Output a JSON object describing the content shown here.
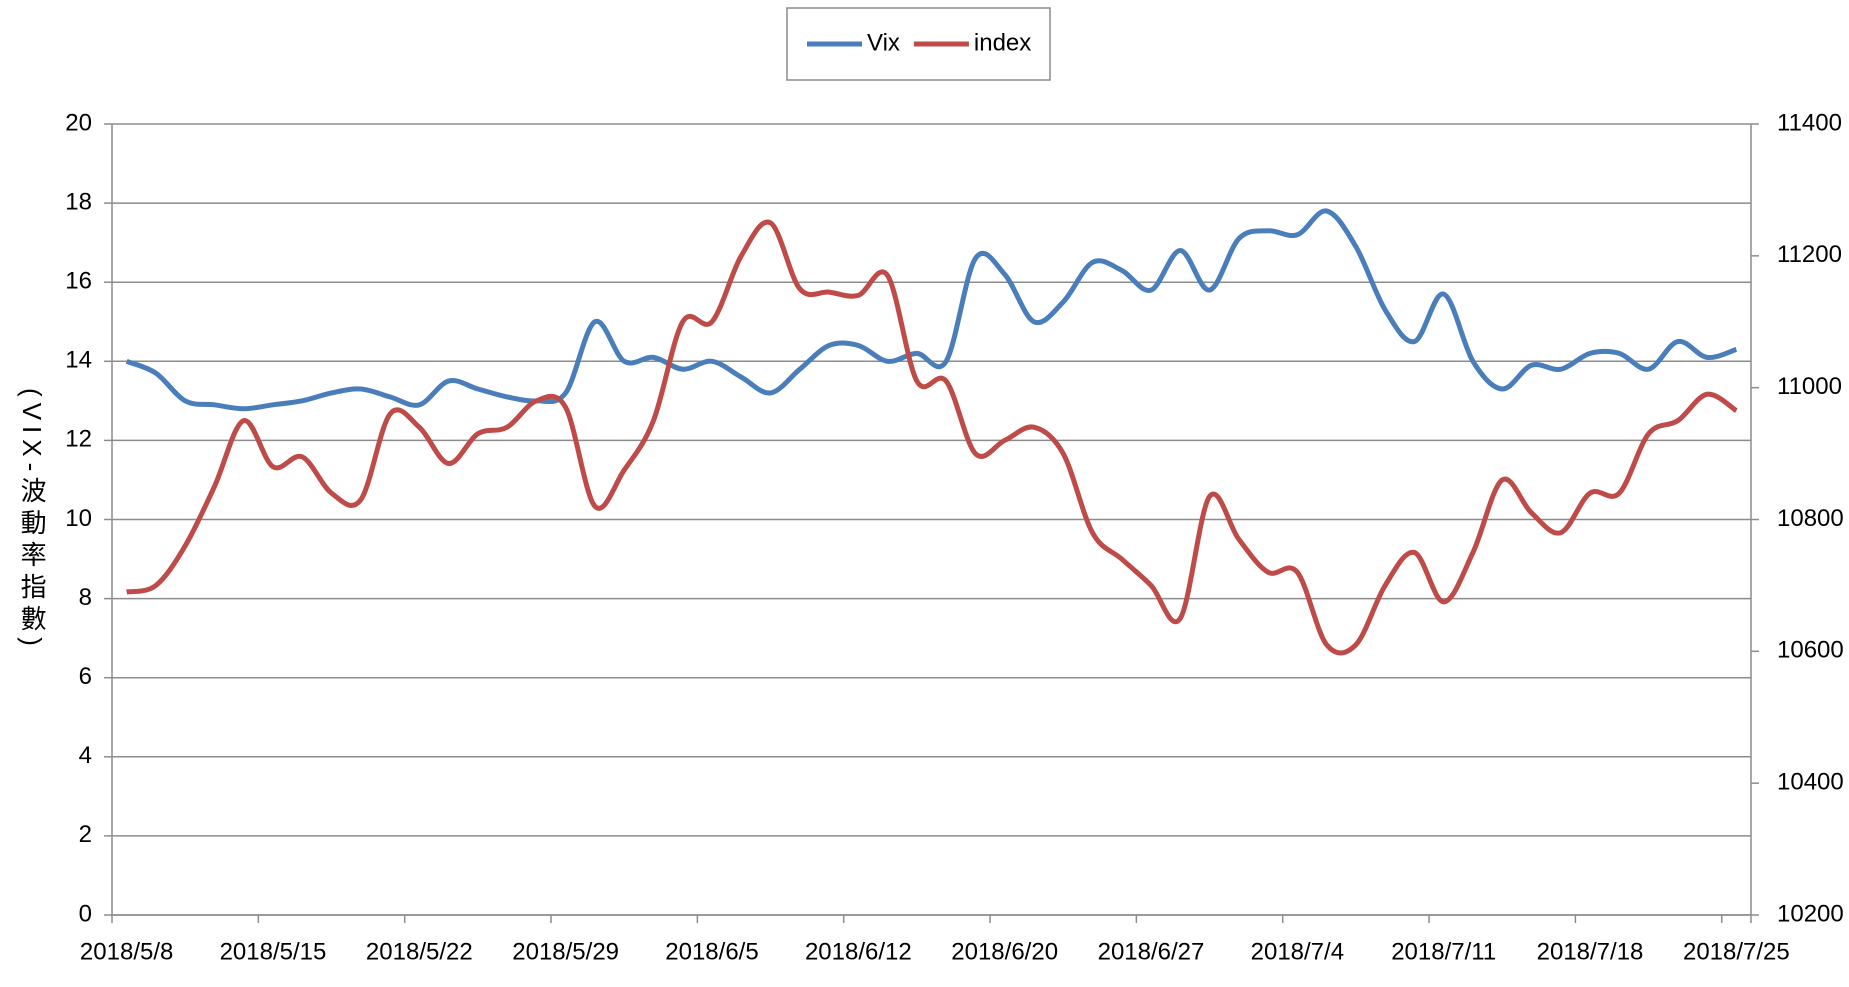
{
  "chart_data": {
    "type": "line",
    "y_label": "(VIX-波動率指數)",
    "categories": [
      "2018/5/8",
      null,
      null,
      null,
      null,
      "2018/5/15",
      null,
      null,
      null,
      null,
      "2018/5/22",
      null,
      null,
      null,
      null,
      "2018/5/29",
      null,
      null,
      null,
      null,
      "2018/6/5",
      null,
      null,
      null,
      null,
      "2018/6/12",
      null,
      null,
      null,
      null,
      "2018/6/20",
      null,
      null,
      null,
      null,
      "2018/6/27",
      null,
      null,
      null,
      null,
      "2018/7/4",
      null,
      null,
      null,
      null,
      "2018/7/11",
      null,
      null,
      null,
      null,
      "2018/7/18",
      null,
      null,
      null,
      null,
      "2018/7/25"
    ],
    "series": [
      {
        "name": "Vix",
        "color": "#4a7ebb",
        "axis": "y",
        "values": [
          14.0,
          13.7,
          13.0,
          12.9,
          12.8,
          12.9,
          13.0,
          13.2,
          13.3,
          13.1,
          12.9,
          13.5,
          13.3,
          13.1,
          13.0,
          13.2,
          15.0,
          14.0,
          14.1,
          13.8,
          14.0,
          13.6,
          13.2,
          13.8,
          14.4,
          14.4,
          14.0,
          14.2,
          14.0,
          16.6,
          16.2,
          15.0,
          15.5,
          16.5,
          16.3,
          15.8,
          16.8,
          15.8,
          17.1,
          17.3,
          17.2,
          17.8,
          16.9,
          15.3,
          14.5,
          15.7,
          14.0,
          13.3,
          13.9,
          13.8,
          14.2,
          14.2,
          13.8,
          14.5,
          14.1,
          14.3
        ]
      },
      {
        "name": "index",
        "color": "#be4b48",
        "axis": "y2",
        "values": [
          10690,
          10700,
          10760,
          10850,
          10950,
          10880,
          10895,
          10840,
          10830,
          10960,
          10940,
          10885,
          10930,
          10940,
          10980,
          10970,
          10820,
          10875,
          10950,
          11100,
          11100,
          11200,
          11250,
          11150,
          11145,
          11140,
          11170,
          11010,
          11010,
          10900,
          10920,
          10940,
          10900,
          10780,
          10740,
          10700,
          10650,
          10835,
          10770,
          10720,
          10720,
          10610,
          10610,
          10700,
          10750,
          10675,
          10750,
          10860,
          10810,
          10780,
          10840,
          10840,
          10930,
          10950,
          10990,
          10965
        ]
      }
    ],
    "ylim": [
      0,
      20
    ],
    "yticks": [
      0,
      2,
      4,
      6,
      8,
      10,
      12,
      14,
      16,
      18,
      20
    ],
    "y2lim": [
      10200,
      11400
    ],
    "y2ticks": [
      10200,
      10400,
      10600,
      10800,
      11000,
      11200,
      11400
    ],
    "grid": true,
    "legend": "top"
  }
}
